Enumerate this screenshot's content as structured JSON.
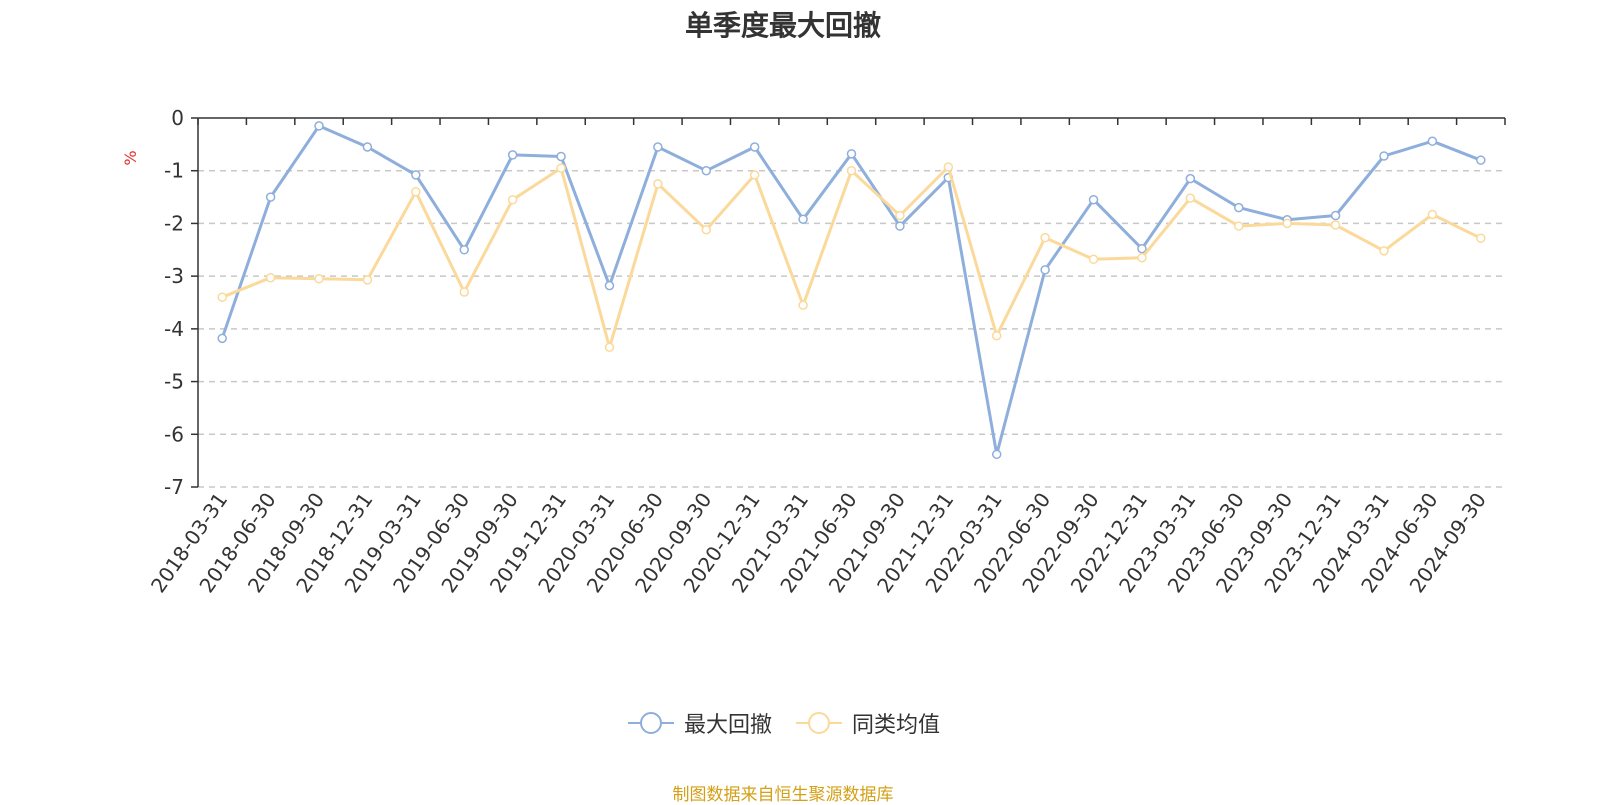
{
  "chart_data": {
    "type": "line",
    "title": "单季度最大回撤",
    "ylabel": "%",
    "xlabel": "",
    "ylim": [
      -7,
      0
    ],
    "yticks": [
      0,
      -1,
      -2,
      -3,
      -4,
      -5,
      -6,
      -7
    ],
    "grid": true,
    "legend_position": "bottom",
    "categories": [
      "2018-03-31",
      "2018-06-30",
      "2018-09-30",
      "2018-12-31",
      "2019-03-31",
      "2019-06-30",
      "2019-09-30",
      "2019-12-31",
      "2020-03-31",
      "2020-06-30",
      "2020-09-30",
      "2020-12-31",
      "2021-03-31",
      "2021-06-30",
      "2021-09-30",
      "2021-12-31",
      "2022-03-31",
      "2022-06-30",
      "2022-09-30",
      "2022-12-31",
      "2023-03-31",
      "2023-06-30",
      "2023-09-30",
      "2023-12-31",
      "2024-03-31",
      "2024-06-30",
      "2024-09-30"
    ],
    "series": [
      {
        "name": "最大回撤",
        "color": "#8eaedb",
        "values": [
          -4.18,
          -1.5,
          -0.15,
          -0.55,
          -1.08,
          -2.5,
          -0.7,
          -0.73,
          -3.18,
          -0.55,
          -1.0,
          -0.55,
          -1.92,
          -0.68,
          -2.05,
          -1.13,
          -6.38,
          -2.88,
          -1.55,
          -2.48,
          -1.15,
          -1.7,
          -1.93,
          -1.85,
          -0.72,
          -0.44,
          -0.8
        ]
      },
      {
        "name": "同类均值",
        "color": "#fbd99a",
        "values": [
          -3.4,
          -3.03,
          -3.05,
          -3.07,
          -1.4,
          -3.3,
          -1.55,
          -0.95,
          -4.35,
          -1.25,
          -2.12,
          -1.08,
          -3.55,
          -1.0,
          -1.85,
          -0.93,
          -4.13,
          -2.27,
          -2.68,
          -2.65,
          -1.52,
          -2.05,
          -2.0,
          -2.03,
          -2.52,
          -1.83,
          -2.28
        ]
      }
    ]
  },
  "footer": {
    "source": "制图数据来自恒生聚源数据库"
  }
}
